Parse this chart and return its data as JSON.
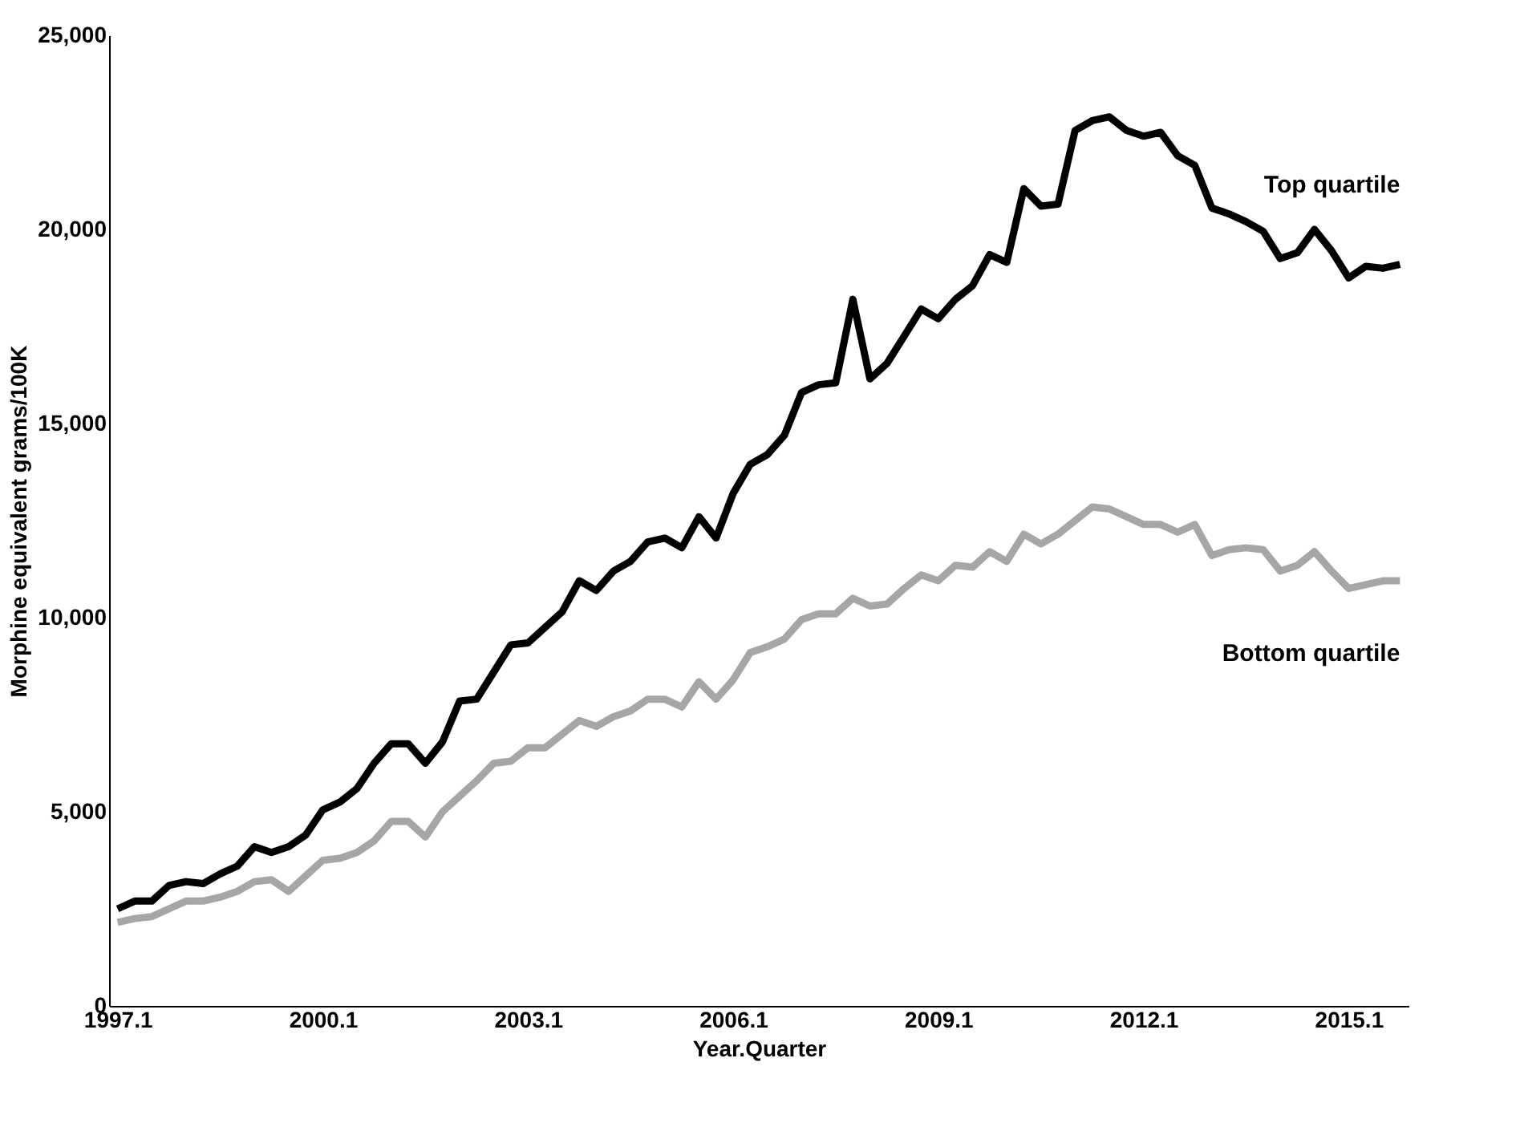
{
  "chart_data": {
    "type": "line",
    "xlabel": "Year.Quarter",
    "ylabel": "Morphine equivalent grams/100K",
    "categories": [
      "1997.1",
      null,
      null,
      null,
      null,
      null,
      null,
      null,
      null,
      null,
      null,
      null,
      "2000.1",
      null,
      null,
      null,
      null,
      null,
      null,
      null,
      null,
      null,
      null,
      null,
      "2003.1",
      null,
      null,
      null,
      null,
      null,
      null,
      null,
      null,
      null,
      null,
      null,
      "2006.1",
      null,
      null,
      null,
      null,
      null,
      null,
      null,
      null,
      null,
      null,
      null,
      "2009.1",
      null,
      null,
      null,
      null,
      null,
      null,
      null,
      null,
      null,
      null,
      null,
      "2012.1",
      null,
      null,
      null,
      null,
      null,
      null,
      null,
      null,
      null,
      null,
      null,
      "2015.1",
      null,
      null,
      null
    ],
    "series": [
      {
        "name": "Top quartile",
        "color": "#000000",
        "values": [
          2500,
          2700,
          2700,
          3100,
          3200,
          3150,
          3400,
          3600,
          4100,
          3950,
          4100,
          4400,
          5050,
          5250,
          5600,
          6250,
          6750,
          6750,
          6250,
          6800,
          7850,
          7900,
          8600,
          9300,
          9350,
          9750,
          10150,
          10950,
          10700,
          11200,
          11450,
          11950,
          12050,
          11800,
          12600,
          12050,
          13200,
          13950,
          14200,
          14700,
          15800,
          16000,
          16050,
          18200,
          16150,
          16550,
          17250,
          17950,
          17700,
          18200,
          18550,
          19350,
          19150,
          21050,
          20600,
          20650,
          22550,
          22800,
          22900,
          22550,
          22400,
          22500,
          21900,
          21650,
          20550,
          20400,
          20200,
          19950,
          19250,
          19400,
          20000,
          19450,
          18750,
          19050,
          19000,
          19100
        ]
      },
      {
        "name": "Bottom quartile",
        "color": "#a6a6a6",
        "values": [
          2150,
          2250,
          2300,
          2500,
          2700,
          2700,
          2800,
          2950,
          3200,
          3250,
          2950,
          3350,
          3750,
          3800,
          3950,
          4250,
          4750,
          4750,
          4350,
          5000,
          5400,
          5800,
          6250,
          6300,
          6650,
          6650,
          7000,
          7350,
          7200,
          7450,
          7600,
          7900,
          7900,
          7700,
          8350,
          7900,
          8400,
          9100,
          9250,
          9450,
          9950,
          10100,
          10100,
          10500,
          10300,
          10350,
          10750,
          11100,
          10950,
          11350,
          11300,
          11700,
          11450,
          12150,
          11900,
          12150,
          12500,
          12850,
          12800,
          12600,
          12400,
          12400,
          12200,
          12400,
          11600,
          11750,
          11800,
          11750,
          11200,
          11350,
          11700,
          11200,
          10750,
          10850,
          10950,
          10950
        ]
      }
    ],
    "ylim": [
      0,
      25000
    ],
    "yticks": [
      0,
      {
        "value": 5000,
        "label": "5,000"
      },
      {
        "value": 10000,
        "label": "10,000"
      },
      {
        "value": 15000,
        "label": "15,000"
      },
      {
        "value": 20000,
        "label": "20,000"
      },
      {
        "value": 25000,
        "label": "25,000"
      }
    ],
    "grid": false,
    "legend": false
  }
}
